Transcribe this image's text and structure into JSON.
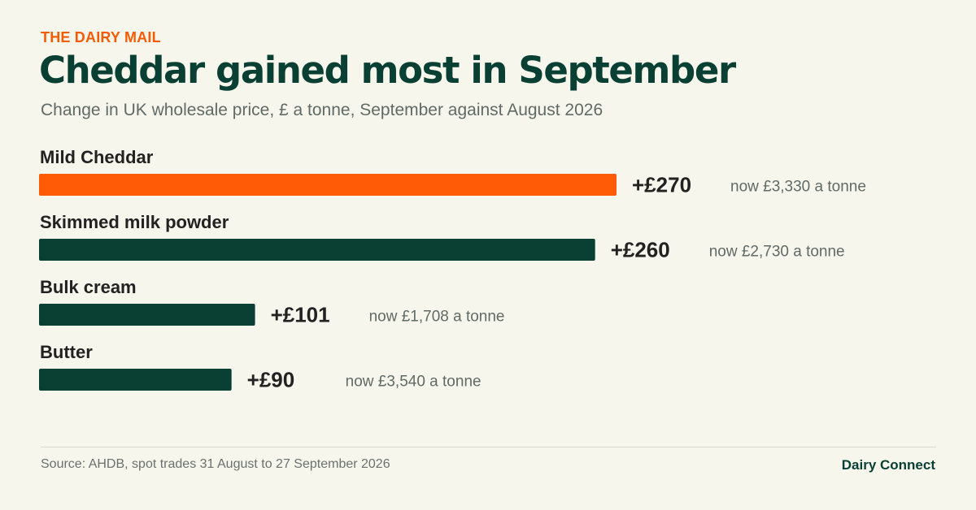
{
  "header": {
    "kicker": "THE DAIRY MAIL",
    "title": "Cheddar gained most in September",
    "subtitle": "Change in UK wholesale price, £ a tonne, September against August 2026"
  },
  "footer": {
    "source": "Source: AHDB, spot trades 31 August to 27 September 2026",
    "brand": "Dairy Connect"
  },
  "colors": {
    "highlight": "#ff5a05",
    "bar": "#0a4034",
    "label": "#222222",
    "note": "#606a66"
  },
  "chart_data": {
    "type": "bar",
    "orientation": "horizontal",
    "title": "Cheddar gained most in September",
    "subtitle": "Change in UK wholesale price, £ a tonne, September against August 2026",
    "categories": [
      "Mild Cheddar",
      "Skimmed milk powder",
      "Bulk cream",
      "Butter"
    ],
    "values": [
      270,
      260,
      101,
      90
    ],
    "value_labels": [
      "+£270",
      "+£260",
      "+£101",
      "+£90"
    ],
    "annotations": [
      "now £3,330 a tonne",
      "now £2,730 a tonne",
      "now £1,708 a tonne",
      "now £3,540 a tonne"
    ],
    "highlight_category": "Mild Cheddar",
    "grid": false,
    "legend": "none"
  }
}
